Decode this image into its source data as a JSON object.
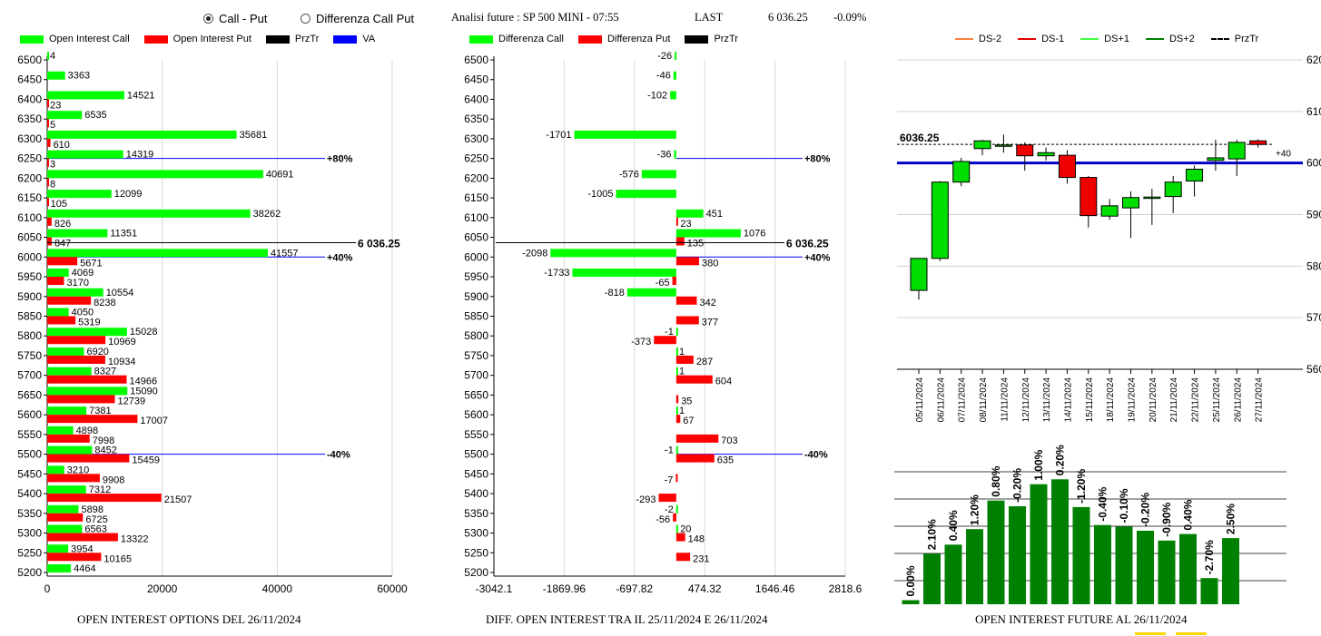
{
  "header": {
    "radio_call_put": "Call - Put",
    "radio_diff_call_put": "Differenza Call Put",
    "selected": "call_put",
    "analysis_title": "Analisi future : SP 500 MINI - 07:55",
    "last_label": "LAST",
    "last_value": "6 036.25",
    "change": "-0.09%"
  },
  "legends": {
    "oi": [
      {
        "label": "Open Interest Call",
        "color": "#00ff00"
      },
      {
        "label": "Open Interest Put",
        "color": "#ff0000"
      },
      {
        "label": "PrzTr",
        "color": "#000000"
      },
      {
        "label": "VA",
        "color": "#0000ff"
      }
    ],
    "diff": [
      {
        "label": "Differenza Call",
        "color": "#00ff00"
      },
      {
        "label": "Differenza Put",
        "color": "#ff0000"
      },
      {
        "label": "PrzTr",
        "color": "#000000"
      }
    ],
    "candle": [
      {
        "label": "DS-2",
        "color": "#ff8040",
        "style": "solid"
      },
      {
        "label": "DS-1",
        "color": "#e00000",
        "style": "solid"
      },
      {
        "label": "DS+1",
        "color": "#40ff40",
        "style": "solid"
      },
      {
        "label": "DS+2",
        "color": "#008000",
        "style": "solid"
      },
      {
        "label": "PrzTr",
        "color": "#000000",
        "style": "dashed"
      }
    ]
  },
  "titles": {
    "oi": "OPEN INTEREST OPTIONS DEL 26/11/2024",
    "diff": "DIFF. OPEN INTEREST TRA IL 25/11/2024 E 26/11/2024",
    "future": "OPEN INTEREST FUTURE AL 26/11/2024"
  },
  "chart_data": [
    {
      "type": "bar",
      "orientation": "horizontal",
      "strikes": [
        6500,
        6450,
        6400,
        6350,
        6300,
        6250,
        6200,
        6150,
        6100,
        6050,
        6000,
        5950,
        5900,
        5850,
        5800,
        5750,
        5700,
        5650,
        5600,
        5550,
        5500,
        5450,
        5400,
        5350,
        5300,
        5250,
        5200
      ],
      "series": [
        {
          "name": "Open Interest Call",
          "color": "#00ff00",
          "values": [
            4,
            3363,
            14521,
            6535,
            35681,
            14319,
            40691,
            12099,
            38262,
            11351,
            41557,
            4069,
            10554,
            4050,
            15028,
            6920,
            8327,
            15090,
            7381,
            4898,
            8452,
            3210,
            7312,
            5898,
            6563,
            3954,
            4464
          ]
        },
        {
          "name": "Open Interest Put",
          "color": "#ff0000",
          "values": [
            null,
            null,
            23,
            5,
            610,
            3,
            8,
            105,
            826,
            847,
            5671,
            3170,
            8238,
            5319,
            10969,
            10934,
            14966,
            12739,
            17007,
            7998,
            15459,
            9908,
            21507,
            6725,
            13322,
            10165,
            null
          ]
        }
      ],
      "xlim": [
        0,
        65000
      ],
      "xticks": [
        "0",
        "20000",
        "40000",
        "60000"
      ],
      "yticks": [
        "6500",
        "6450",
        "6400",
        "6350",
        "6300",
        "6250",
        "6200",
        "6150",
        "6100",
        "6050",
        "6000",
        "5950",
        "5900",
        "5850",
        "5800",
        "5750",
        "5700",
        "5650",
        "5600",
        "5550",
        "5500",
        "5450",
        "5400",
        "5350",
        "5300",
        "5250",
        "5200"
      ],
      "prztr": {
        "strike": 6036.25,
        "label": "6 036.25"
      },
      "va_lines": [
        {
          "strike": 6250,
          "label": "+80%"
        },
        {
          "strike": 6000,
          "label": "+40%"
        },
        {
          "strike": 5500,
          "label": "-40%"
        }
      ]
    },
    {
      "type": "bar",
      "orientation": "horizontal",
      "strikes": [
        6500,
        6450,
        6400,
        6350,
        6300,
        6250,
        6200,
        6150,
        6100,
        6050,
        6000,
        5950,
        5900,
        5850,
        5800,
        5750,
        5700,
        5650,
        5600,
        5550,
        5500,
        5450,
        5400,
        5350,
        5300,
        5250,
        5200
      ],
      "series": [
        {
          "name": "Differenza Call",
          "color": "#00ff00",
          "values": [
            -26,
            -46,
            -102,
            null,
            -1701,
            -36,
            -576,
            -1005,
            451,
            1076,
            -2098,
            -1733,
            -818,
            null,
            -1,
            1,
            1,
            null,
            1,
            null,
            -1,
            null,
            null,
            -2,
            20,
            null,
            null
          ]
        },
        {
          "name": "Differenza Put",
          "color": "#ff0000",
          "values": [
            null,
            null,
            null,
            null,
            null,
            null,
            null,
            null,
            23,
            135,
            380,
            -65,
            342,
            377,
            -373,
            287,
            604,
            35,
            67,
            703,
            635,
            -7,
            -293,
            -56,
            148,
            231,
            null
          ]
        }
      ],
      "xlim": [
        -3042.1,
        2818.6
      ],
      "xticks": [
        "-3042.1",
        "-1869.96",
        "-697.82",
        "474.32",
        "1646.46",
        "2818.6"
      ],
      "yticks": [
        "6500",
        "6450",
        "6400",
        "6350",
        "6300",
        "6250",
        "6200",
        "6150",
        "6100",
        "6050",
        "6000",
        "5950",
        "5900",
        "5850",
        "5800",
        "5750",
        "5700",
        "5650",
        "5600",
        "5550",
        "5500",
        "5450",
        "5400",
        "5350",
        "5300",
        "5250",
        "5200"
      ],
      "prztr": {
        "strike": 6036.25,
        "label": "6 036.25"
      },
      "va_lines": [
        {
          "strike": 6250,
          "label": "+80%"
        },
        {
          "strike": 6000,
          "label": "+40%"
        },
        {
          "strike": 5500,
          "label": "-40%"
        }
      ]
    },
    {
      "type": "candlestick",
      "dates": [
        "05/11/2024",
        "06/11/2024",
        "07/11/2024",
        "08/11/2024",
        "11/11/2024",
        "12/11/2024",
        "13/11/2024",
        "14/11/2024",
        "15/11/2024",
        "18/11/2024",
        "19/11/2024",
        "20/11/2024",
        "21/11/2024",
        "22/11/2024",
        "25/11/2024",
        "26/11/2024",
        "27/11/2024"
      ],
      "open": [
        5753,
        5815,
        5963,
        6028,
        6035,
        6035,
        6014,
        6015,
        5972,
        5897,
        5913,
        5933,
        5935,
        5965,
        6005,
        6008,
        6043
      ],
      "close": [
        5815,
        5963,
        6003,
        6043,
        6035,
        6014,
        6020,
        5972,
        5898,
        5917,
        5933,
        5934,
        5963,
        5988,
        6010,
        6040,
        6036
      ],
      "high": [
        5815,
        5965,
        6010,
        6045,
        6055,
        6040,
        6030,
        6025,
        5975,
        5930,
        5945,
        5950,
        5975,
        5995,
        6045,
        6045,
        6046
      ],
      "low": [
        5735,
        5810,
        5955,
        6015,
        6020,
        5985,
        6005,
        5960,
        5875,
        5890,
        5855,
        5880,
        5903,
        5935,
        5985,
        5975,
        6030
      ],
      "ylim": [
        5600,
        6200
      ],
      "yticks": [
        "5600",
        "5700",
        "5800",
        "5900",
        "6000",
        "6100",
        "6200"
      ],
      "prztr": {
        "value": 6036.25,
        "label": "6036.25"
      },
      "va_line": 6000,
      "right_note": "+40"
    },
    {
      "type": "bar",
      "labels": [
        "0.00%",
        "2.10%",
        "0.40%",
        "1.20%",
        "0.80%",
        "-0.20%",
        "1.00%",
        "0.20%",
        "-1.20%",
        "-0.40%",
        "-0.10%",
        "-0.20%",
        "-0.90%",
        "0.40%",
        "-2.70%",
        "2.50%"
      ],
      "values": [
        1.0,
        12.4,
        14.6,
        18.4,
        25.4,
        24.0,
        29.4,
        30.6,
        23.8,
        19.4,
        19.0,
        18.0,
        15.6,
        17.2,
        6.4,
        16.2
      ],
      "color": "#008000"
    }
  ]
}
